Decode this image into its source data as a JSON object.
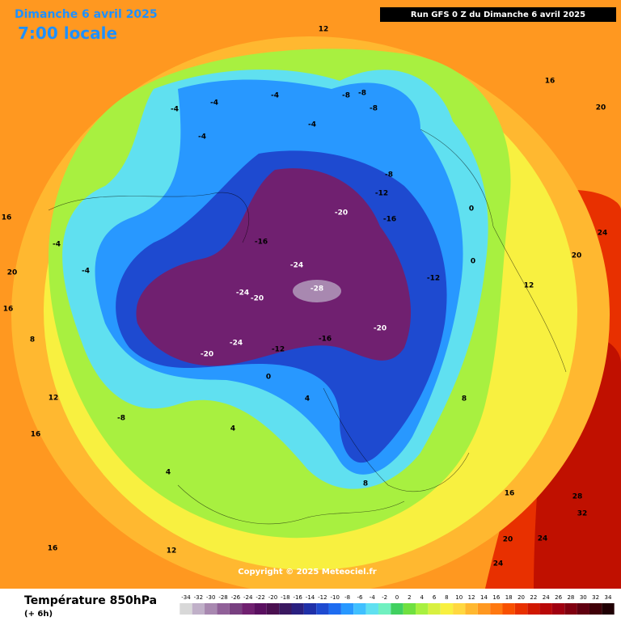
{
  "header": {
    "date": "Dimanche 6 avril 2025",
    "time": "7:00 locale",
    "run": "Run GFS 0 Z du Dimanche 6 avril 2025"
  },
  "footer": {
    "variable": "Température 850hPa",
    "step": "(+ 6h)",
    "copyright": "Copyright © 2025 Meteociel.fr"
  },
  "colorbar": {
    "ticks": [
      -34,
      -32,
      -30,
      -28,
      -26,
      -24,
      -22,
      -20,
      -18,
      -16,
      -14,
      -12,
      -10,
      -8,
      -6,
      -4,
      -2,
      0,
      2,
      4,
      6,
      8,
      10,
      12,
      14,
      16,
      18,
      20,
      22,
      24,
      26,
      28,
      30,
      32,
      34
    ],
    "colors": [
      "#d8d8d8",
      "#c0b0c8",
      "#a888b0",
      "#906098",
      "#784080",
      "#702070",
      "#5a1060",
      "#4a1050",
      "#3a1860",
      "#2a2080",
      "#1f30a8",
      "#1e4ad0",
      "#1e6cf0",
      "#2898ff",
      "#40c0ff",
      "#60e0f0",
      "#70f0c0",
      "#40d060",
      "#70e040",
      "#a8f040",
      "#d8f040",
      "#f8f040",
      "#ffd840",
      "#ffb830",
      "#ff9820",
      "#ff7810",
      "#f85000",
      "#e83000",
      "#d01800",
      "#b80808",
      "#a00010",
      "#800010",
      "#600010",
      "#400008",
      "#200004"
    ]
  },
  "map_labels": [
    -28,
    -24,
    -20,
    -16,
    -12,
    -20,
    -16,
    -24,
    -20,
    -24,
    -20,
    -12,
    -8,
    -12,
    -16,
    -8,
    -8,
    -8,
    -4,
    -4,
    -4,
    -4,
    -4,
    0,
    0,
    0,
    -4,
    -4,
    -8,
    4,
    4,
    4,
    8,
    8,
    12,
    12,
    12,
    16,
    16,
    16,
    20,
    20,
    24,
    24,
    24,
    28,
    32,
    20,
    16,
    12,
    8,
    16,
    20,
    16
  ]
}
